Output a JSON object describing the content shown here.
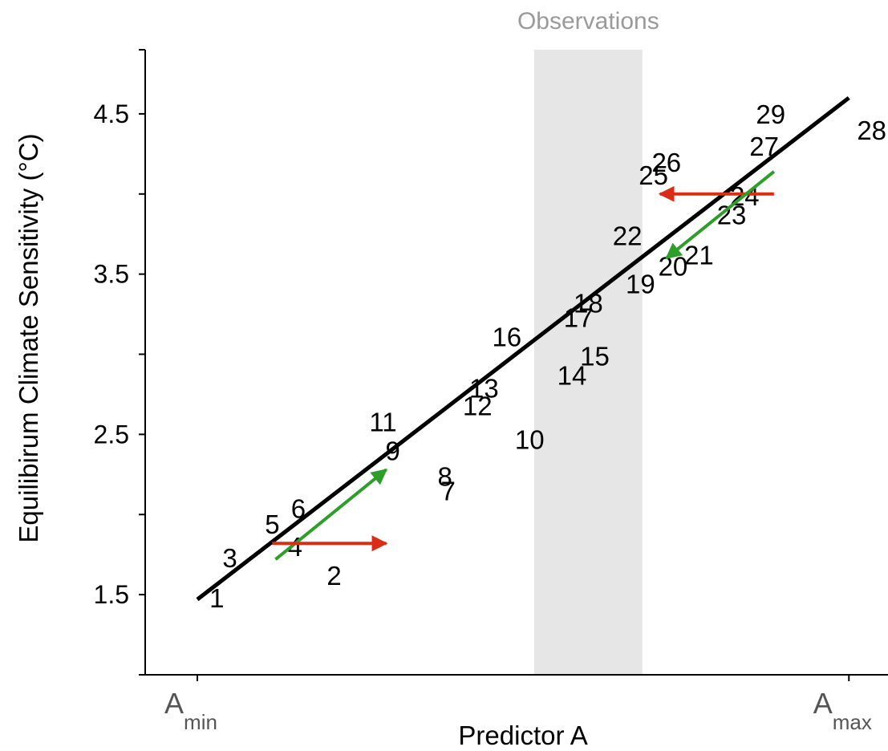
{
  "chart_data": {
    "type": "scatter",
    "title": "",
    "xlabel": "Predictor A",
    "ylabel": "Equilibirum Climate Sensitivity (°C)",
    "ylim": [
      1.0,
      4.9
    ],
    "xlim": [
      -0.08,
      1.06
    ],
    "yticks": [
      1.5,
      2.5,
      3.5,
      4.5
    ],
    "x_tick_labels": [
      {
        "x": 0.0,
        "main": "A",
        "sub": "min"
      },
      {
        "x": 1.0,
        "main": "A",
        "sub": "max"
      }
    ],
    "grid": false,
    "observations_band": {
      "label": "Observations",
      "x_range": [
        0.517,
        0.683
      ]
    },
    "fit_line": {
      "x": [
        0.0,
        1.0
      ],
      "y": [
        1.47,
        4.6
      ],
      "color": "#000000"
    },
    "points": [
      {
        "label": "1",
        "x": 0.03,
        "y": 1.48
      },
      {
        "label": "2",
        "x": 0.21,
        "y": 1.62
      },
      {
        "label": "3",
        "x": 0.05,
        "y": 1.73
      },
      {
        "label": "4",
        "x": 0.15,
        "y": 1.8
      },
      {
        "label": "5",
        "x": 0.115,
        "y": 1.94
      },
      {
        "label": "6",
        "x": 0.155,
        "y": 2.04
      },
      {
        "label": "7",
        "x": 0.385,
        "y": 2.15
      },
      {
        "label": "8",
        "x": 0.38,
        "y": 2.24
      },
      {
        "label": "9",
        "x": 0.3,
        "y": 2.4
      },
      {
        "label": "10",
        "x": 0.51,
        "y": 2.47
      },
      {
        "label": "11",
        "x": 0.285,
        "y": 2.58
      },
      {
        "label": "12",
        "x": 0.43,
        "y": 2.68
      },
      {
        "label": "13",
        "x": 0.44,
        "y": 2.79
      },
      {
        "label": "14",
        "x": 0.575,
        "y": 2.87
      },
      {
        "label": "15",
        "x": 0.61,
        "y": 2.99
      },
      {
        "label": "16",
        "x": 0.475,
        "y": 3.11
      },
      {
        "label": "17",
        "x": 0.585,
        "y": 3.23
      },
      {
        "label": "18",
        "x": 0.6,
        "y": 3.32
      },
      {
        "label": "19",
        "x": 0.68,
        "y": 3.44
      },
      {
        "label": "20",
        "x": 0.73,
        "y": 3.55
      },
      {
        "label": "21",
        "x": 0.77,
        "y": 3.62
      },
      {
        "label": "22",
        "x": 0.66,
        "y": 3.74
      },
      {
        "label": "23",
        "x": 0.82,
        "y": 3.87
      },
      {
        "label": "24",
        "x": 0.84,
        "y": 3.99
      },
      {
        "label": "25",
        "x": 0.7,
        "y": 4.12
      },
      {
        "label": "26",
        "x": 0.72,
        "y": 4.2
      },
      {
        "label": "27",
        "x": 0.87,
        "y": 4.3
      },
      {
        "label": "28",
        "x": 1.035,
        "y": 4.4
      },
      {
        "label": "29",
        "x": 0.88,
        "y": 4.5
      }
    ],
    "arrows": [
      {
        "color": "#2e9e2a",
        "from": [
          0.12,
          1.72
        ],
        "to": [
          0.29,
          2.28
        ]
      },
      {
        "color": "#d92e15",
        "from": [
          0.115,
          1.82
        ],
        "to": [
          0.29,
          1.82
        ]
      },
      {
        "color": "#d92e15",
        "from": [
          0.885,
          4.0
        ],
        "to": [
          0.71,
          4.0
        ]
      },
      {
        "color": "#2e9e2a",
        "from": [
          0.885,
          4.14
        ],
        "to": [
          0.72,
          3.6
        ]
      }
    ]
  }
}
